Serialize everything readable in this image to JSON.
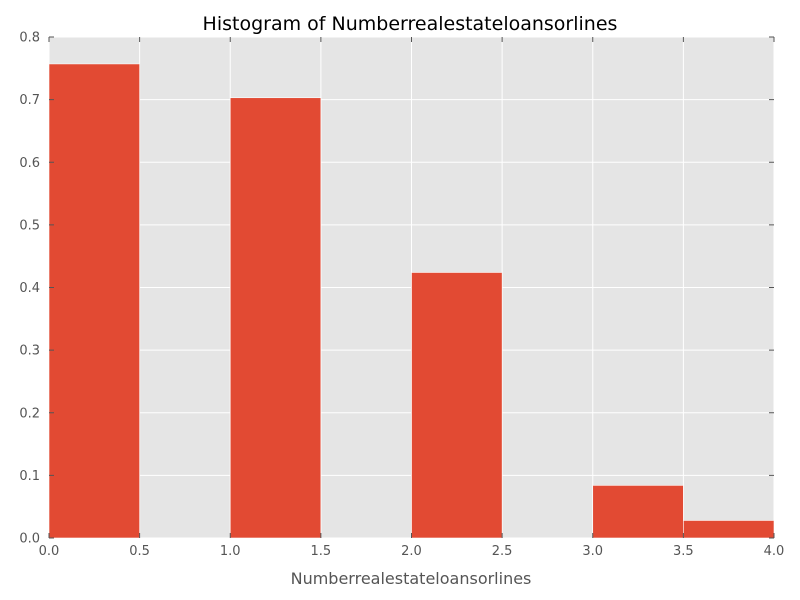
{
  "chart_data": {
    "type": "bar",
    "title": "Histogram of Numberrealestateloansorlines",
    "xlabel": "Numberrealestateloansorlines",
    "ylabel": "",
    "xlim": [
      0.0,
      4.0
    ],
    "ylim": [
      0.0,
      0.8
    ],
    "grid": true,
    "legend": "none",
    "x_ticks": [
      "0.0",
      "0.5",
      "1.0",
      "1.5",
      "2.0",
      "2.5",
      "3.0",
      "3.5",
      "4.0"
    ],
    "y_ticks": [
      "0.0",
      "0.1",
      "0.2",
      "0.3",
      "0.4",
      "0.5",
      "0.6",
      "0.7",
      "0.8"
    ],
    "bins": [
      {
        "x0": 0.0,
        "x1": 0.5,
        "value": 0.757
      },
      {
        "x0": 1.0,
        "x1": 1.5,
        "value": 0.703
      },
      {
        "x0": 2.0,
        "x1": 2.5,
        "value": 0.424
      },
      {
        "x0": 3.0,
        "x1": 3.5,
        "value": 0.084
      },
      {
        "x0": 3.5,
        "x1": 4.0,
        "value": 0.028
      }
    ],
    "colors": {
      "bar": "#E24A33",
      "plot_background": "#E5E5E5",
      "grid": "#FFFFFF"
    }
  }
}
